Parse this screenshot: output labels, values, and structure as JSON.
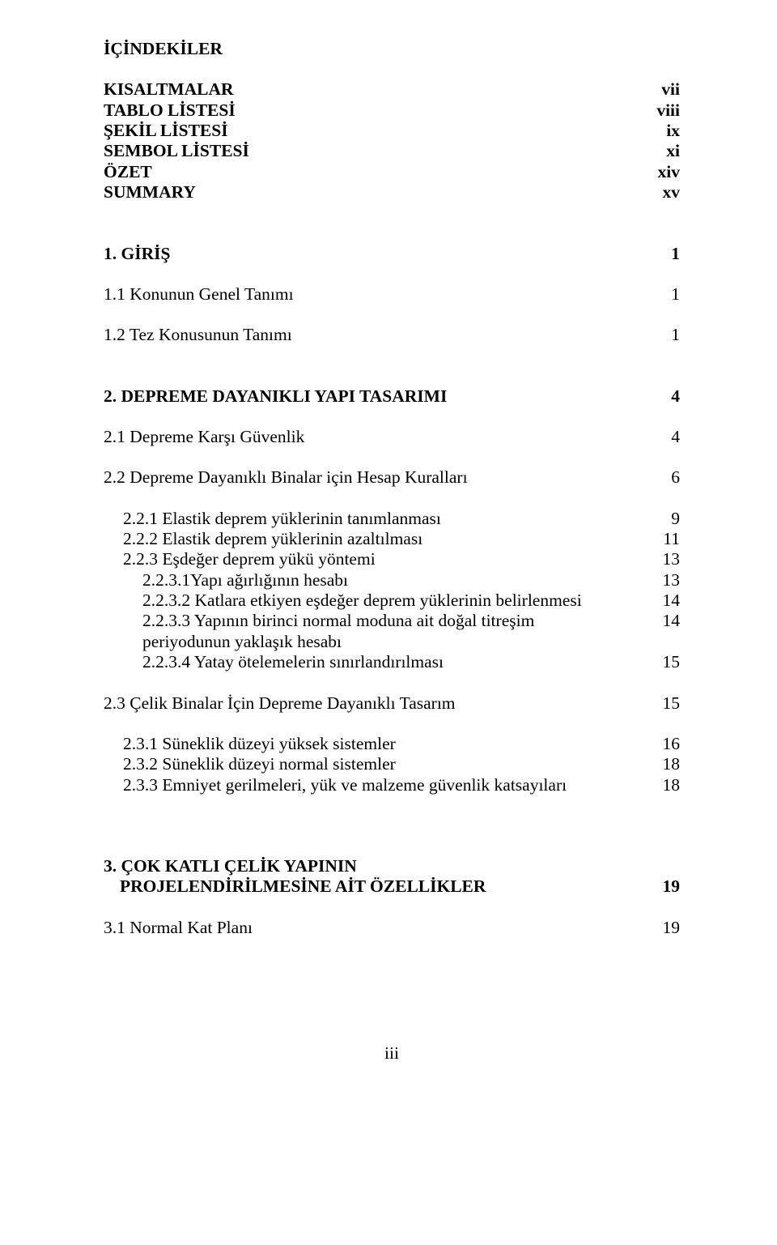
{
  "title": "İÇİNDEKİLER",
  "frontMatter": [
    {
      "label": "KISALTMALAR",
      "page": "vii"
    },
    {
      "label": "TABLO LİSTESİ",
      "page": "viii"
    },
    {
      "label": "ŞEKİL LİSTESİ",
      "page": "ix"
    },
    {
      "label": "SEMBOL LİSTESİ",
      "page": "xi"
    },
    {
      "label": "ÖZET",
      "page": "xiv"
    },
    {
      "label": "SUMMARY",
      "page": "xv"
    }
  ],
  "s1": {
    "head": {
      "label": "1. GİRİŞ",
      "page": "1"
    },
    "items": [
      {
        "label": "1.1 Konunun Genel Tanımı",
        "page": "1"
      },
      {
        "label": "1.2 Tez Konusunun Tanımı",
        "page": "1"
      }
    ]
  },
  "s2": {
    "head": {
      "label": "2. DEPREME DAYANIKLI YAPI TASARIMI",
      "page": "4"
    },
    "l1": [
      {
        "label": "2.1 Depreme Karşı Güvenlik",
        "page": "4"
      },
      {
        "label": "2.2 Depreme Dayanıklı Binalar için Hesap Kuralları",
        "page": "6"
      }
    ],
    "l2a": [
      {
        "label": "2.2.1 Elastik deprem yüklerinin tanımlanması",
        "page": "9"
      },
      {
        "label": "2.2.2 Elastik deprem yüklerinin azaltılması",
        "page": "11"
      },
      {
        "label": "2.2.3 Eşdeğer deprem yükü yöntemi",
        "page": "13"
      }
    ],
    "l3": [
      {
        "label": "2.2.3.1Yapı ağırlığının hesabı",
        "page": "13"
      },
      {
        "label": "2.2.3.2 Katlara etkiyen eşdeğer deprem yüklerinin belirlenmesi",
        "page": "14"
      }
    ],
    "l3wrap": {
      "top": "2.2.3.3 Yapının birinci normal moduna ait doğal titreşim",
      "page": "14",
      "bottom": "periyodunun yaklaşık hesabı"
    },
    "l3b": [
      {
        "label": "2.2.3.4 Yatay ötelemelerin sınırlandırılması",
        "page": "15"
      }
    ],
    "l1b": [
      {
        "label": "2.3 Çelik Binalar İçin Depreme Dayanıklı Tasarım",
        "page": "15"
      }
    ],
    "l2b": [
      {
        "label": "2.3.1 Süneklik düzeyi yüksek sistemler",
        "page": "16"
      },
      {
        "label": "2.3.2 Süneklik düzeyi normal sistemler",
        "page": "18"
      },
      {
        "label": "2.3.3 Emniyet gerilmeleri, yük ve malzeme güvenlik katsayıları",
        "page": "18"
      }
    ]
  },
  "s3": {
    "headTop": "3. ÇOK KATLI ÇELİK YAPININ",
    "headBottom": "PROJELENDİRİLMESİNE AİT ÖZELLİKLER",
    "headPage": "19",
    "items": [
      {
        "label": "3.1 Normal Kat Planı",
        "page": "19"
      }
    ]
  },
  "pageNum": "iii"
}
